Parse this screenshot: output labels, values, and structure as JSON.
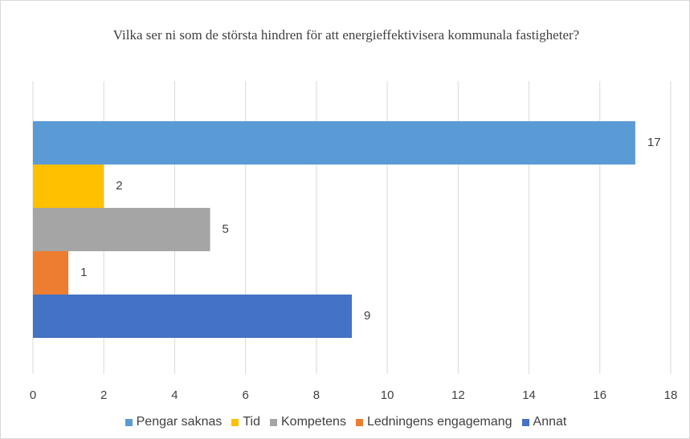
{
  "chart_data": {
    "type": "bar",
    "orientation": "horizontal",
    "title": "Vilka ser ni som de största hindren för att energieffektivisera kommunala fastigheter?",
    "categories": [
      null
    ],
    "series": [
      {
        "name": "Pengar saknas",
        "color": "#5b9bd5",
        "values": [
          17
        ]
      },
      {
        "name": "Tid",
        "color": "#ffc000",
        "values": [
          2
        ]
      },
      {
        "name": "Kompetens",
        "color": "#a5a5a5",
        "values": [
          5
        ]
      },
      {
        "name": "Ledningens engagemang",
        "color": "#ed7d31",
        "values": [
          1
        ]
      },
      {
        "name": "Annat",
        "color": "#4472c4",
        "values": [
          9
        ]
      }
    ],
    "xlim": [
      0,
      18
    ],
    "xticks": [
      0,
      2,
      4,
      6,
      8,
      10,
      12,
      14,
      16,
      18
    ],
    "grid": true,
    "legend": "bottom"
  }
}
